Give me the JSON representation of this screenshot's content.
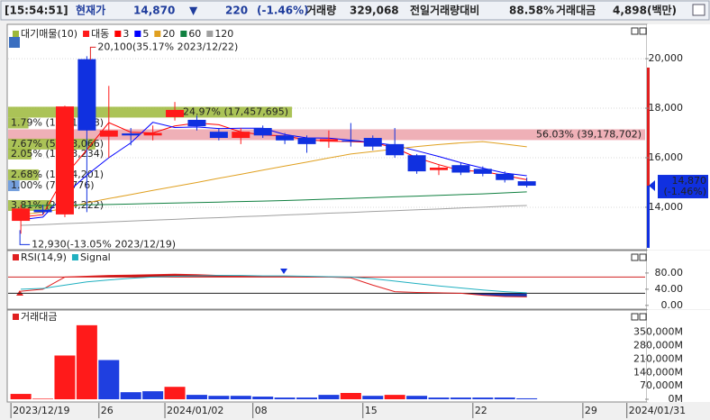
{
  "header": {
    "time": "[15:54:51]",
    "price_label": "현재가",
    "price": "14,870",
    "arrow": "▼",
    "change": "220",
    "change_pct": "(-1.46%)",
    "volume_label": "거래량",
    "volume": "329,068",
    "ratio_label": "전일거래량대비",
    "ratio": "88.58%",
    "amount_label": "거래대금",
    "amount": "4,898(백만)"
  },
  "chart_data": [
    {
      "type": "candlestick",
      "name": "대동",
      "up_color": "#ff1a1a",
      "down_color": "#1030e0",
      "open": [
        13450,
        13900,
        13710,
        19980,
        16850,
        16980,
        16900,
        17640,
        17530,
        17050,
        16800,
        17200,
        16900,
        16800,
        16650,
        16700,
        16800,
        16550,
        16100,
        15500,
        15700,
        15550,
        15350,
        15050,
        null,
        null,
        null,
        null,
        null
      ],
      "high": [
        14100,
        14100,
        18100,
        20100,
        18900,
        17200,
        17300,
        18250,
        17700,
        17200,
        17200,
        17300,
        17000,
        16900,
        17100,
        17400,
        16900,
        17200,
        16150,
        15700,
        15800,
        15650,
        15450,
        15200,
        null,
        null,
        null,
        null,
        null
      ],
      "low": [
        12930,
        13700,
        13600,
        13800,
        16000,
        16500,
        16700,
        17500,
        17100,
        16700,
        16550,
        16800,
        16550,
        16200,
        16400,
        16450,
        16300,
        16000,
        15350,
        15300,
        15300,
        15250,
        15000,
        14800,
        null,
        null,
        null,
        null,
        null
      ],
      "close": [
        13950,
        13800,
        18070,
        17100,
        17100,
        16900,
        17000,
        17930,
        17270,
        16800,
        17050,
        16900,
        16700,
        16550,
        16750,
        16650,
        16450,
        16100,
        15450,
        15600,
        15400,
        15350,
        15100,
        14870,
        null,
        null,
        null,
        null,
        null
      ],
      "series": [
        {
          "name": "3",
          "color": "#ff0000",
          "values": [
            13600,
            13700,
            15270,
            16320,
            17420,
            17030,
            17000,
            17280,
            17400,
            17330,
            17040,
            16920,
            16880,
            16720,
            16670,
            16650,
            16620,
            16400,
            16000,
            15720,
            15480,
            15450,
            15280,
            15110,
            null,
            null,
            null,
            null,
            null
          ]
        },
        {
          "name": "5",
          "color": "#0000ff",
          "values": [
            13500,
            13600,
            14500,
            15300,
            16000,
            16600,
            17430,
            17220,
            17240,
            17180,
            17190,
            17190,
            16940,
            16800,
            16790,
            16710,
            16620,
            16500,
            16280,
            16050,
            15800,
            15580,
            15380,
            15270,
            null,
            null,
            null,
            null,
            null
          ]
        },
        {
          "name": "20",
          "color": "#e0a020",
          "values": [
            13700,
            13800,
            13950,
            14180,
            14350,
            14510,
            14680,
            14840,
            15000,
            15170,
            15330,
            15500,
            15660,
            15820,
            15990,
            16150,
            16250,
            16350,
            16450,
            16530,
            16600,
            16650,
            16550,
            16440,
            null,
            null,
            null,
            null,
            null
          ]
        },
        {
          "name": "60",
          "color": "#108040",
          "values": [
            14050,
            14070,
            14090,
            14100,
            14110,
            14130,
            14150,
            14170,
            14190,
            14210,
            14230,
            14250,
            14270,
            14300,
            14330,
            14360,
            14390,
            14420,
            14450,
            14480,
            14510,
            14540,
            14580,
            14620,
            null,
            null,
            null,
            null,
            null
          ]
        },
        {
          "name": "120",
          "color": "#a0a0a0",
          "values": [
            13270,
            13300,
            13340,
            13370,
            13410,
            13440,
            13480,
            13510,
            13550,
            13580,
            13620,
            13650,
            13690,
            13720,
            13760,
            13790,
            13830,
            13860,
            13900,
            13930,
            13970,
            14000,
            14040,
            14070,
            null,
            null,
            null,
            null,
            null
          ]
        }
      ],
      "volume_profile": {
        "name": "대기매물(10)",
        "levels": [
          17840,
          17400,
          16930,
          16550,
          16150,
          15310,
          14870,
          14070
        ],
        "values": [
          24.97,
          1.79,
          56.03,
          7.67,
          2.05,
          2.68,
          1.0,
          3.81
        ],
        "value_labels": [
          "24.97% (17,457,695)",
          "1.79% (1,251,628)",
          "56.03% (39,178,702)",
          "7.67% (5,363,066)",
          "2.05% (1,433,234)",
          "2.68% (1,874,201)",
          "1.00% (700,776)",
          "3.81% (2,664,222)"
        ],
        "colors": [
          "#9cb83a",
          "#9cb83a",
          "#eca2aa",
          "#9cb83a",
          "#9cb83a",
          "#9cb83a",
          "#5d8fd8",
          "#9cb83a"
        ]
      },
      "high_label": "20,100(35.17% 2023/12/22)",
      "low_label": "12,930(-13.05% 2023/12/19)",
      "ylim": [
        12360,
        21350
      ],
      "yticks": [
        {
          "value": 14000,
          "label": "14,000"
        },
        {
          "value": 16000,
          "label": "16,000"
        },
        {
          "value": 18000,
          "label": "18,000"
        },
        {
          "value": 20000,
          "label": "20,000"
        }
      ],
      "grid": true
    },
    {
      "type": "line",
      "series": [
        {
          "name": "RSI(14,9)",
          "color": "#e02020",
          "values": [
            35,
            40,
            70,
            72,
            74,
            75,
            76,
            77,
            76,
            74,
            73,
            72,
            71,
            70,
            70,
            68,
            50,
            34,
            32,
            31,
            30,
            25,
            22,
            21,
            null,
            null,
            null,
            null,
            null
          ]
        },
        {
          "name": "Signal",
          "color": "#20b0c0",
          "values": [
            40,
            42,
            50,
            58,
            63,
            67,
            70,
            72,
            73,
            74,
            74,
            73,
            73,
            72,
            71,
            70,
            66,
            60,
            54,
            48,
            43,
            38,
            34,
            31,
            null,
            null,
            null,
            null,
            null
          ]
        }
      ],
      "reference_lines": [
        {
          "value": 70,
          "color": "#d02020",
          "fill_color": "#c01010"
        },
        {
          "value": 30,
          "color": "#202020",
          "fill_color": "#1a36b0"
        }
      ],
      "ylim": [
        -7,
        131
      ],
      "yticks": [
        {
          "value": 0,
          "label": "0.00"
        },
        {
          "value": 40,
          "label": "40.00"
        },
        {
          "value": 80,
          "label": "80.00"
        }
      ]
    },
    {
      "type": "bar",
      "name": "거래대금",
      "categories": [
        "2023/12/19",
        null,
        null,
        null,
        "26",
        null,
        null,
        "2024/01/02",
        null,
        null,
        null,
        "08",
        null,
        null,
        null,
        null,
        "15",
        null,
        null,
        null,
        null,
        "22",
        null,
        null,
        null,
        null,
        "29",
        null,
        "2024/01/31"
      ],
      "values": [
        28000,
        3000,
        228700,
        387000,
        205000,
        37000,
        42000,
        65000,
        23000,
        18000,
        18000,
        14000,
        9000,
        9000,
        23000,
        33000,
        18000,
        23000,
        18000,
        9000,
        9000,
        9000,
        9000,
        4898,
        null,
        null,
        null,
        null,
        null
      ],
      "colors": [
        "#ff1a1a",
        "#ff1a1a",
        "#ff1a1a",
        "#ff1a1a",
        "#1f3fe0",
        "#1f3fe0",
        "#1f3fe0",
        "#ff1a1a",
        "#1f3fe0",
        "#1f3fe0",
        "#1f3fe0",
        "#1f3fe0",
        "#1f3fe0",
        "#1f3fe0",
        "#1f3fe0",
        "#ff1a1a",
        "#1f3fe0",
        "#ff1a1a",
        "#1f3fe0",
        "#1f3fe0",
        "#1f3fe0",
        "#1f3fe0",
        "#1f3fe0",
        "#1f3fe0",
        null,
        null,
        null,
        null,
        null
      ],
      "ylim": [
        0,
        457000
      ],
      "yticks": [
        {
          "value": 0,
          "label": "0M"
        },
        {
          "value": 70000,
          "label": "70,000M"
        },
        {
          "value": 140000,
          "label": "140,000M"
        },
        {
          "value": 210000,
          "label": "210,000M"
        },
        {
          "value": 280000,
          "label": "280,000M"
        },
        {
          "value": 350000,
          "label": "350,000M"
        }
      ]
    }
  ]
}
